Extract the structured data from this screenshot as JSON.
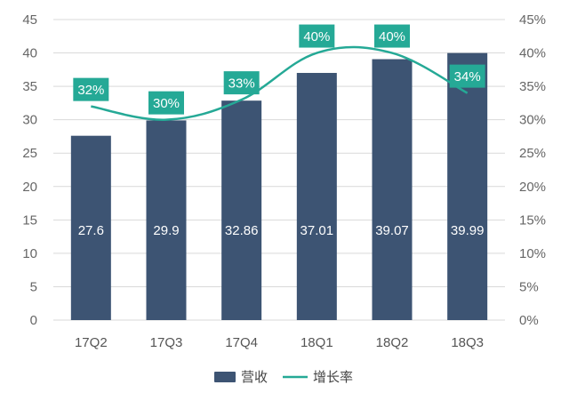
{
  "chart_data": {
    "type": "bar",
    "categories": [
      "17Q2",
      "17Q3",
      "17Q4",
      "18Q1",
      "18Q2",
      "18Q3"
    ],
    "series": [
      {
        "name": "营收",
        "type": "bar",
        "axis": "left",
        "values": [
          27.6,
          29.9,
          32.86,
          37.01,
          39.07,
          39.99
        ],
        "labels": [
          "27.6",
          "29.9",
          "32.86",
          "37.01",
          "39.07",
          "39.99"
        ]
      },
      {
        "name": "增长率",
        "type": "line",
        "axis": "right",
        "values": [
          32,
          30,
          33,
          40,
          40,
          34
        ],
        "labels": [
          "32%",
          "30%",
          "33%",
          "40%",
          "40%",
          "34%"
        ]
      }
    ],
    "title": "",
    "xlabel": "",
    "ylabel": "",
    "ylim": [
      0,
      45
    ],
    "y_ticks": [
      "0",
      "5",
      "10",
      "15",
      "20",
      "25",
      "30",
      "35",
      "40",
      "45"
    ],
    "y2lim": [
      0,
      45
    ],
    "y2_ticks": [
      "0%",
      "5%",
      "10%",
      "15%",
      "20%",
      "25%",
      "30%",
      "35%",
      "40%",
      "45%"
    ],
    "grid": true,
    "legend_position": "bottom",
    "colors": {
      "bar": "#3d5473",
      "line": "#25a996",
      "label_box": "#25a996",
      "grid": "#d9d9d9"
    }
  }
}
